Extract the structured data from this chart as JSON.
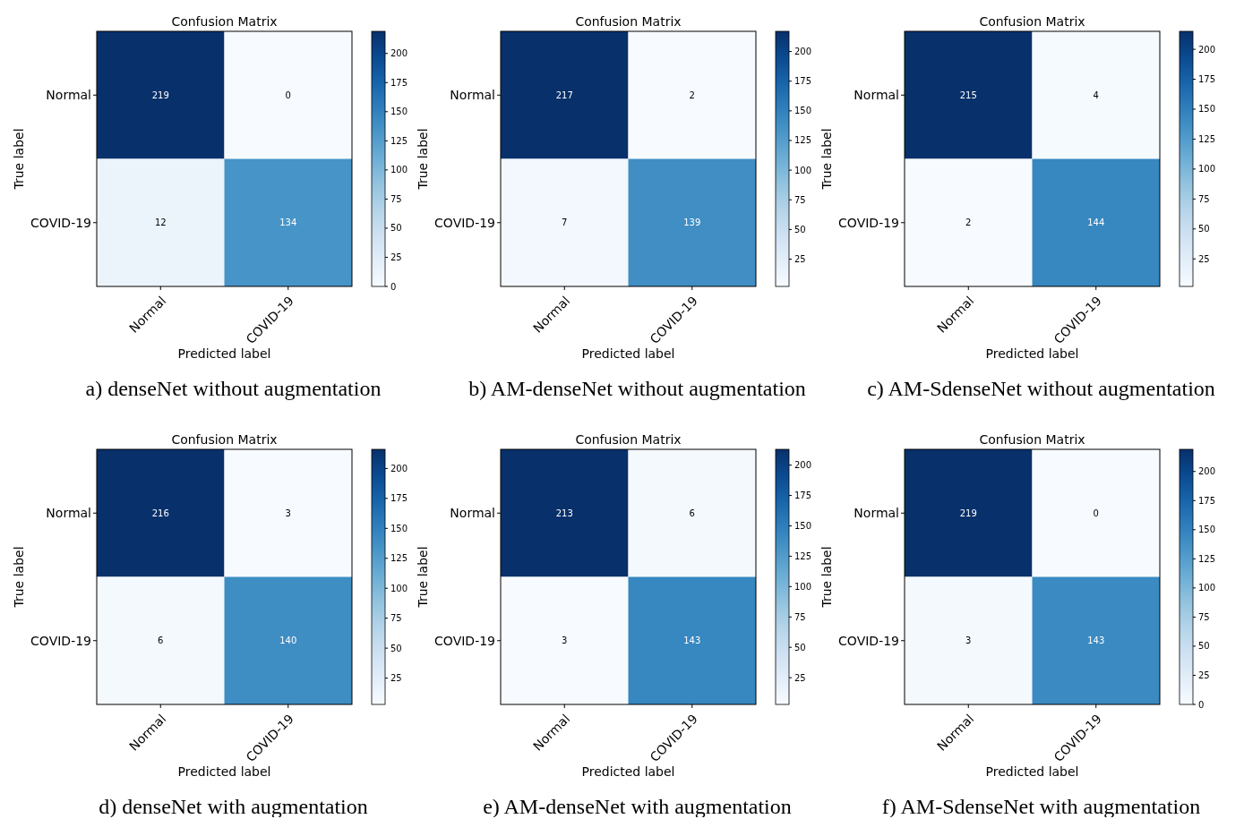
{
  "chart_data": [
    {
      "type": "heatmap",
      "title": "Confusion Matrix",
      "xlabel": "Predicted label",
      "ylabel": "True label",
      "categories": [
        "Normal",
        "COVID-19"
      ],
      "y_categories": [
        "Normal",
        "COVID-19"
      ],
      "cells": [
        [
          219,
          0
        ],
        [
          12,
          134
        ]
      ],
      "data_labels": true,
      "clim": [
        0,
        219
      ],
      "cticks": [
        0,
        25,
        50,
        75,
        100,
        125,
        150,
        175,
        200
      ],
      "annotations": [
        "a) denseNet without augmentation"
      ]
    },
    {
      "type": "heatmap",
      "title": "Confusion Matrix",
      "xlabel": "Predicted label",
      "ylabel": "True label",
      "categories": [
        "Normal",
        "COVID-19"
      ],
      "y_categories": [
        "Normal",
        "COVID-19"
      ],
      "cells": [
        [
          217,
          2
        ],
        [
          7,
          139
        ]
      ],
      "data_labels": true,
      "clim": [
        2,
        217
      ],
      "cticks": [
        25,
        50,
        75,
        100,
        125,
        150,
        175,
        200
      ],
      "annotations": [
        "b) AM-denseNet without augmentation"
      ]
    },
    {
      "type": "heatmap",
      "title": "Confusion Matrix",
      "xlabel": "Predicted label",
      "ylabel": "True label",
      "categories": [
        "Normal",
        "COVID-19"
      ],
      "y_categories": [
        "Normal",
        "COVID-19"
      ],
      "cells": [
        [
          215,
          4
        ],
        [
          2,
          144
        ]
      ],
      "data_labels": true,
      "clim": [
        2,
        215
      ],
      "cticks": [
        25,
        50,
        75,
        100,
        125,
        150,
        175,
        200
      ],
      "annotations": [
        "c) AM-SdenseNet without augmentation"
      ]
    },
    {
      "type": "heatmap",
      "title": "Confusion Matrix",
      "xlabel": "Predicted label",
      "ylabel": "True label",
      "categories": [
        "Normal",
        "COVID-19"
      ],
      "y_categories": [
        "Normal",
        "COVID-19"
      ],
      "cells": [
        [
          216,
          3
        ],
        [
          6,
          140
        ]
      ],
      "data_labels": true,
      "clim": [
        3,
        216
      ],
      "cticks": [
        25,
        50,
        75,
        100,
        125,
        150,
        175,
        200
      ],
      "annotations": [
        "d) denseNet with augmentation"
      ]
    },
    {
      "type": "heatmap",
      "title": "Confusion Matrix",
      "xlabel": "Predicted label",
      "ylabel": "True label",
      "categories": [
        "Normal",
        "COVID-19"
      ],
      "y_categories": [
        "Normal",
        "COVID-19"
      ],
      "cells": [
        [
          213,
          6
        ],
        [
          3,
          143
        ]
      ],
      "data_labels": true,
      "clim": [
        3,
        213
      ],
      "cticks": [
        25,
        50,
        75,
        100,
        125,
        150,
        175,
        200
      ],
      "annotations": [
        "e) AM-denseNet with augmentation"
      ]
    },
    {
      "type": "heatmap",
      "title": "Confusion Matrix",
      "xlabel": "Predicted label",
      "ylabel": "True label",
      "categories": [
        "Normal",
        "COVID-19"
      ],
      "y_categories": [
        "Normal",
        "COVID-19"
      ],
      "cells": [
        [
          219,
          0
        ],
        [
          3,
          143
        ]
      ],
      "data_labels": true,
      "clim": [
        0,
        219
      ],
      "cticks": [
        0,
        25,
        50,
        75,
        100,
        125,
        150,
        175,
        200
      ],
      "annotations": [
        "f) AM-SdenseNet with augmentation"
      ]
    }
  ]
}
